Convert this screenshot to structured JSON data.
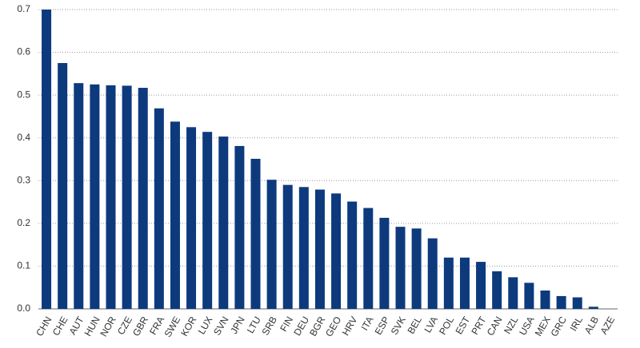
{
  "chart_data": {
    "type": "bar",
    "categories": [
      "CHN",
      "CHE",
      "AUT",
      "HUN",
      "NOR",
      "CZE",
      "GBR",
      "FRA",
      "SWE",
      "KOR",
      "LUX",
      "SVN",
      "JPN",
      "LTU",
      "SRB",
      "FIN",
      "DEU",
      "BGR",
      "GEO",
      "HRV",
      "ITA",
      "ESP",
      "SVK",
      "BEL",
      "LVA",
      "POL",
      "EST",
      "PRT",
      "CAN",
      "NZL",
      "USA",
      "MEX",
      "GRC",
      "IRL",
      "ALB",
      "AZE"
    ],
    "values": [
      0.7,
      0.575,
      0.528,
      0.525,
      0.523,
      0.522,
      0.517,
      0.469,
      0.438,
      0.425,
      0.414,
      0.403,
      0.381,
      0.351,
      0.302,
      0.29,
      0.285,
      0.279,
      0.27,
      0.251,
      0.236,
      0.213,
      0.192,
      0.188,
      0.165,
      0.12,
      0.12,
      0.11,
      0.088,
      0.074,
      0.061,
      0.043,
      0.03,
      0.027,
      0.005,
      0
    ],
    "color": "#0d3a7d",
    "ylim": [
      0,
      0.7
    ],
    "yticks": [
      {
        "value": 0,
        "label": "0.0"
      },
      0.1,
      0.2,
      0.3,
      0.4,
      0.5,
      0.6,
      0.7
    ],
    "grid": true
  }
}
